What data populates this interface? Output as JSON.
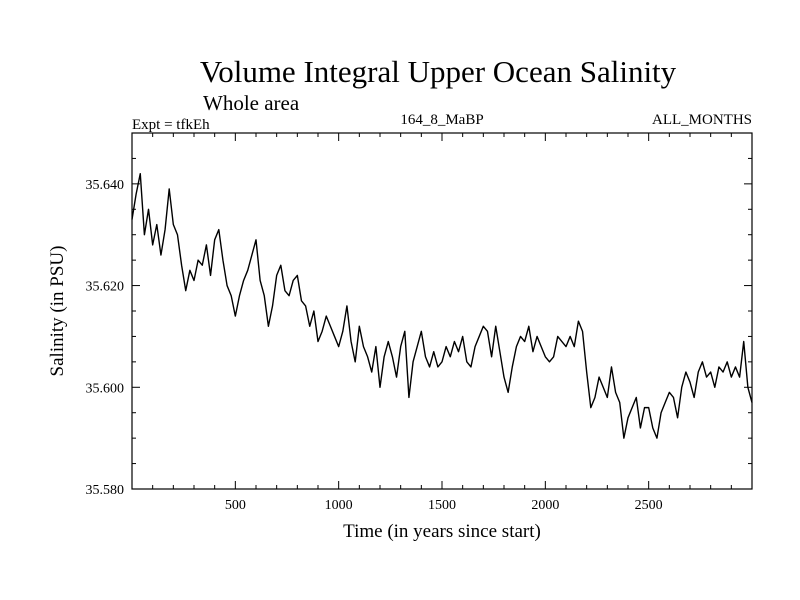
{
  "chart_data": {
    "type": "line",
    "title": "Volume Integral Upper Ocean Salinity",
    "subtitle": "Whole area",
    "left_label": "Expt = tfkEh",
    "center_label": "164_8_MaBP",
    "right_label": "ALL_MONTHS",
    "xlabel": "Time (in years since start)",
    "ylabel": "Salinity (in PSU)",
    "xlim": [
      0,
      3000
    ],
    "ylim": [
      35.58,
      35.65
    ],
    "xticks": [
      500,
      1000,
      1500,
      2000,
      2500
    ],
    "xtick_labels": [
      "500",
      "1000",
      "1500",
      "2000",
      "2500"
    ],
    "yticks": [
      35.58,
      35.6,
      35.62,
      35.64
    ],
    "ytick_labels": [
      "35.580",
      "35.600",
      "35.620",
      "35.640"
    ],
    "grid": false,
    "series": [
      {
        "color": "#000000",
        "x": [
          0,
          20,
          40,
          60,
          80,
          100,
          120,
          140,
          160,
          180,
          200,
          220,
          240,
          260,
          280,
          300,
          320,
          340,
          360,
          380,
          400,
          420,
          440,
          460,
          480,
          500,
          520,
          540,
          560,
          580,
          600,
          620,
          640,
          660,
          680,
          700,
          720,
          740,
          760,
          780,
          800,
          820,
          840,
          860,
          880,
          900,
          920,
          940,
          960,
          980,
          1000,
          1020,
          1040,
          1060,
          1080,
          1100,
          1120,
          1140,
          1160,
          1180,
          1200,
          1220,
          1240,
          1260,
          1280,
          1300,
          1320,
          1340,
          1360,
          1380,
          1400,
          1420,
          1440,
          1460,
          1480,
          1500,
          1520,
          1540,
          1560,
          1580,
          1600,
          1620,
          1640,
          1660,
          1680,
          1700,
          1720,
          1740,
          1760,
          1780,
          1800,
          1820,
          1840,
          1860,
          1880,
          1900,
          1920,
          1940,
          1960,
          1980,
          2000,
          2020,
          2040,
          2060,
          2080,
          2100,
          2120,
          2140,
          2160,
          2180,
          2200,
          2220,
          2240,
          2260,
          2280,
          2300,
          2320,
          2340,
          2360,
          2380,
          2400,
          2420,
          2440,
          2460,
          2480,
          2500,
          2520,
          2540,
          2560,
          2580,
          2600,
          2620,
          2640,
          2660,
          2680,
          2700,
          2720,
          2740,
          2760,
          2780,
          2800,
          2820,
          2840,
          2860,
          2880,
          2900,
          2920,
          2940,
          2960,
          2980,
          3000
        ],
        "values": [
          35.633,
          35.638,
          35.642,
          35.63,
          35.635,
          35.628,
          35.632,
          35.626,
          35.631,
          35.639,
          35.632,
          35.63,
          35.624,
          35.619,
          35.623,
          35.621,
          35.625,
          35.624,
          35.628,
          35.622,
          35.629,
          35.631,
          35.625,
          35.62,
          35.618,
          35.614,
          35.618,
          35.621,
          35.623,
          35.626,
          35.629,
          35.621,
          35.618,
          35.612,
          35.616,
          35.622,
          35.624,
          35.619,
          35.618,
          35.621,
          35.622,
          35.617,
          35.616,
          35.612,
          35.615,
          35.609,
          35.611,
          35.614,
          35.612,
          35.61,
          35.608,
          35.611,
          35.616,
          35.609,
          35.605,
          35.612,
          35.608,
          35.606,
          35.603,
          35.608,
          35.6,
          35.606,
          35.609,
          35.606,
          35.602,
          35.608,
          35.611,
          35.598,
          35.605,
          35.608,
          35.611,
          35.606,
          35.604,
          35.607,
          35.604,
          35.605,
          35.608,
          35.606,
          35.609,
          35.607,
          35.61,
          35.605,
          35.604,
          35.608,
          35.61,
          35.612,
          35.611,
          35.606,
          35.612,
          35.607,
          35.602,
          35.599,
          35.604,
          35.608,
          35.61,
          35.609,
          35.612,
          35.607,
          35.61,
          35.608,
          35.606,
          35.605,
          35.606,
          35.61,
          35.609,
          35.608,
          35.61,
          35.608,
          35.613,
          35.611,
          35.603,
          35.596,
          35.598,
          35.602,
          35.6,
          35.598,
          35.604,
          35.599,
          35.597,
          35.59,
          35.594,
          35.596,
          35.598,
          35.592,
          35.596,
          35.596,
          35.592,
          35.59,
          35.595,
          35.597,
          35.599,
          35.598,
          35.594,
          35.6,
          35.603,
          35.601,
          35.598,
          35.603,
          35.605,
          35.602,
          35.603,
          35.6,
          35.604,
          35.603,
          35.605,
          35.602,
          35.604,
          35.602,
          35.609,
          35.6,
          35.597
        ]
      }
    ]
  }
}
